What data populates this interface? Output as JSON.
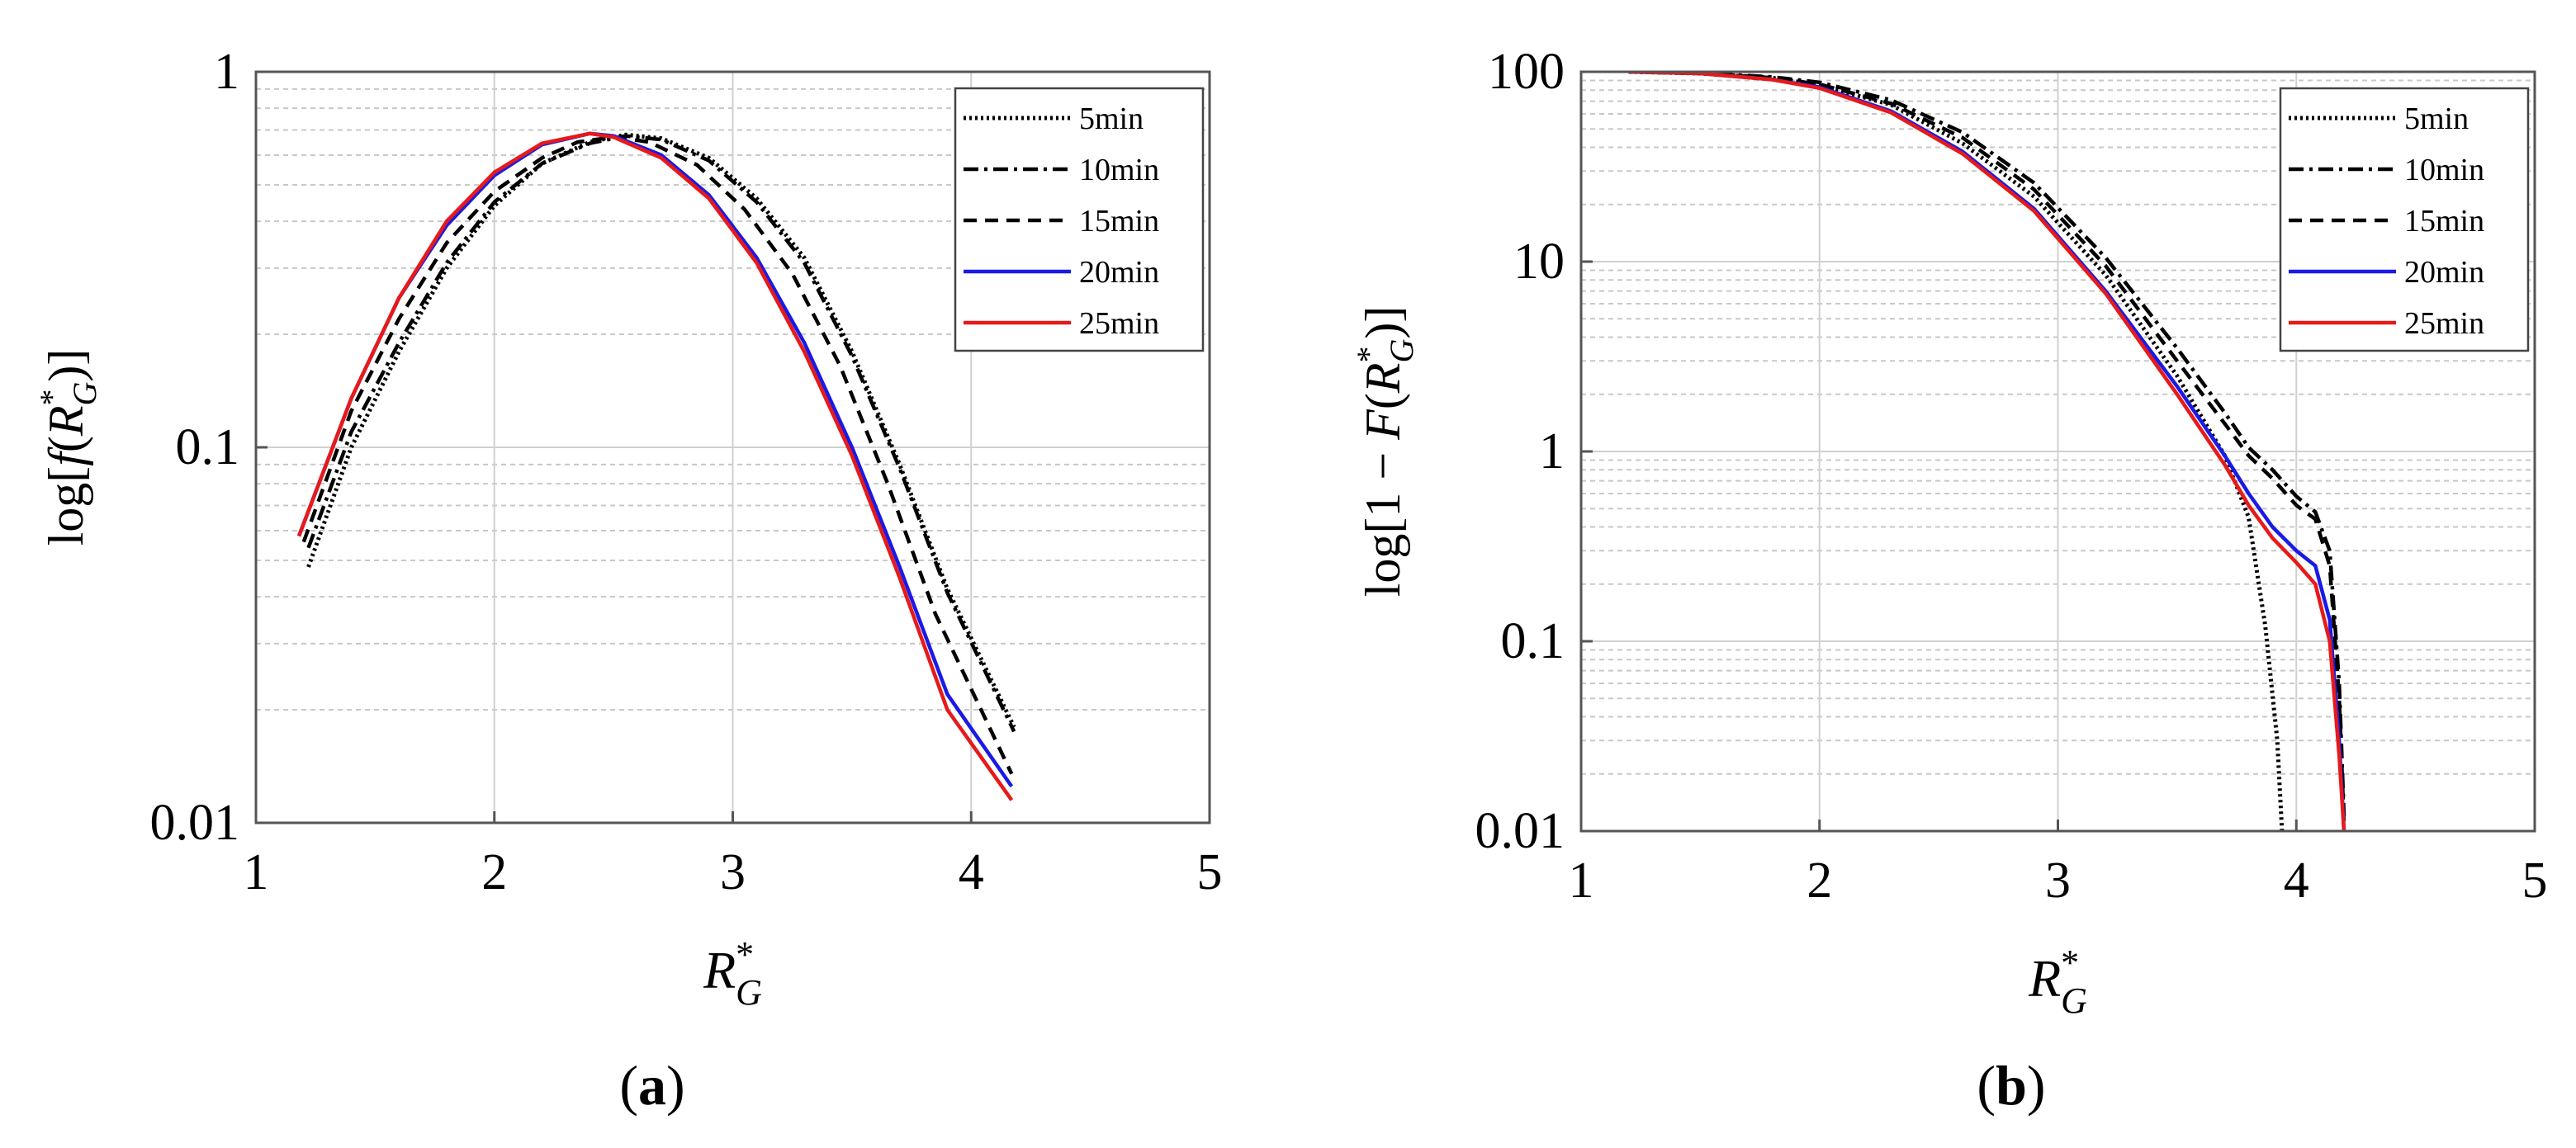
{
  "chart_data": [
    {
      "id": "a",
      "type": "line",
      "caption": "(a)",
      "yscale": "log",
      "xlim": [
        1,
        5
      ],
      "ylim": [
        0.01,
        1
      ],
      "xticks": [
        1,
        2,
        3,
        4,
        5
      ],
      "xtick_labels": [
        "1",
        "2",
        "3",
        "4",
        "5"
      ],
      "yticks": [
        0.01,
        0.1,
        1
      ],
      "ytick_labels": [
        "0.01",
        "0.1",
        "1"
      ],
      "ylabel": "log[f(R*G)]",
      "ylabel_parts": {
        "pre": "log[",
        "fn": "f",
        "open": "(",
        "var": "R",
        "sub": "G",
        "sup": "*",
        "close": ")]"
      },
      "xlabel_parts": {
        "var": "R",
        "sub": "G",
        "sup": "*"
      },
      "grid": true,
      "legend_position": "top-right",
      "series": [
        {
          "name": "5min",
          "style": "dotted",
          "color": "#000000",
          "x": [
            1.22,
            1.4,
            1.6,
            1.8,
            2.0,
            2.2,
            2.4,
            2.55,
            2.7,
            2.9,
            3.1,
            3.3,
            3.5,
            3.7,
            3.9,
            4.18
          ],
          "y": [
            0.048,
            0.1,
            0.18,
            0.3,
            0.44,
            0.57,
            0.65,
            0.68,
            0.665,
            0.59,
            0.46,
            0.32,
            0.18,
            0.09,
            0.042,
            0.018
          ]
        },
        {
          "name": "10min",
          "style": "dashdot",
          "color": "#000000",
          "x": [
            1.22,
            1.4,
            1.6,
            1.8,
            2.0,
            2.2,
            2.4,
            2.55,
            2.7,
            2.9,
            3.1,
            3.3,
            3.5,
            3.7,
            3.9,
            4.18
          ],
          "y": [
            0.054,
            0.11,
            0.19,
            0.31,
            0.45,
            0.57,
            0.645,
            0.675,
            0.66,
            0.58,
            0.45,
            0.31,
            0.175,
            0.088,
            0.041,
            0.0175
          ]
        },
        {
          "name": "15min",
          "style": "dashed",
          "color": "#000000",
          "x": [
            1.2,
            1.4,
            1.6,
            1.8,
            2.0,
            2.2,
            2.35,
            2.5,
            2.65,
            2.85,
            3.05,
            3.25,
            3.45,
            3.65,
            3.85,
            4.17
          ],
          "y": [
            0.056,
            0.125,
            0.22,
            0.35,
            0.48,
            0.59,
            0.65,
            0.67,
            0.65,
            0.565,
            0.43,
            0.29,
            0.165,
            0.08,
            0.036,
            0.0135
          ]
        },
        {
          "name": "20min",
          "style": "solid",
          "color": "#1a1ae6",
          "x": [
            1.18,
            1.4,
            1.6,
            1.8,
            2.0,
            2.2,
            2.4,
            2.5,
            2.7,
            2.9,
            3.1,
            3.3,
            3.5,
            3.7,
            3.9,
            4.17
          ],
          "y": [
            0.058,
            0.135,
            0.25,
            0.39,
            0.53,
            0.64,
            0.685,
            0.675,
            0.6,
            0.47,
            0.32,
            0.19,
            0.1,
            0.048,
            0.022,
            0.0125
          ]
        },
        {
          "name": "25min",
          "style": "solid",
          "color": "#e61a1a",
          "x": [
            1.18,
            1.4,
            1.6,
            1.8,
            2.0,
            2.2,
            2.4,
            2.5,
            2.7,
            2.9,
            3.1,
            3.3,
            3.5,
            3.7,
            3.9,
            4.17
          ],
          "y": [
            0.058,
            0.135,
            0.25,
            0.4,
            0.54,
            0.645,
            0.685,
            0.67,
            0.59,
            0.46,
            0.31,
            0.18,
            0.095,
            0.045,
            0.02,
            0.0115
          ]
        }
      ]
    },
    {
      "id": "b",
      "type": "line",
      "caption": "(b)",
      "yscale": "log",
      "xlim": [
        1,
        5
      ],
      "ylim": [
        0.01,
        100
      ],
      "xticks": [
        1,
        2,
        3,
        4,
        5
      ],
      "xtick_labels": [
        "1",
        "2",
        "3",
        "4",
        "5"
      ],
      "yticks": [
        0.01,
        0.1,
        1,
        10,
        100
      ],
      "ytick_labels": [
        "0.01",
        "0.1",
        "1",
        "10",
        "100"
      ],
      "ylabel": "log[1 − F(R*G)]",
      "ylabel_parts": {
        "pre": "log[1 − ",
        "fn": "F",
        "open": "(",
        "var": "R",
        "sub": "G",
        "sup": "*",
        "close": ")]"
      },
      "xlabel_parts": {
        "var": "R",
        "sub": "G",
        "sup": "*"
      },
      "grid": true,
      "legend_position": "top-right",
      "series": [
        {
          "name": "5min",
          "style": "dotted",
          "color": "#000000",
          "x": [
            1.2,
            1.5,
            1.8,
            2.0,
            2.3,
            2.6,
            2.9,
            3.2,
            3.5,
            3.7,
            3.8,
            3.87,
            3.92,
            3.94
          ],
          "y": [
            100,
            98,
            93,
            85,
            67,
            42,
            22,
            8.5,
            2.5,
            0.95,
            0.45,
            0.12,
            0.03,
            0.01
          ]
        },
        {
          "name": "10min",
          "style": "dashdot",
          "color": "#000000",
          "x": [
            1.2,
            1.5,
            1.8,
            2.0,
            2.3,
            2.6,
            2.9,
            3.2,
            3.5,
            3.7,
            3.8,
            3.9,
            4.0,
            4.08,
            4.14,
            4.18,
            4.2
          ],
          "y": [
            100,
            98.5,
            94,
            88,
            71,
            48,
            26,
            10.5,
            3.5,
            1.6,
            1.05,
            0.8,
            0.58,
            0.48,
            0.3,
            0.06,
            0.012
          ]
        },
        {
          "name": "15min",
          "style": "dashed",
          "color": "#000000",
          "x": [
            1.2,
            1.5,
            1.8,
            2.0,
            2.3,
            2.6,
            2.9,
            3.2,
            3.5,
            3.7,
            3.8,
            3.9,
            4.0,
            4.08,
            4.14,
            4.18,
            4.2
          ],
          "y": [
            100,
            98,
            93,
            86,
            68,
            45,
            24,
            9.5,
            3.0,
            1.4,
            0.95,
            0.72,
            0.52,
            0.44,
            0.25,
            0.05,
            0.011
          ]
        },
        {
          "name": "20min",
          "style": "solid",
          "color": "#1a1ae6",
          "x": [
            1.2,
            1.5,
            1.8,
            2.0,
            2.3,
            2.6,
            2.9,
            3.2,
            3.5,
            3.7,
            3.8,
            3.9,
            4.0,
            4.08,
            4.14,
            4.18,
            4.2
          ],
          "y": [
            100,
            98,
            91,
            83,
            62,
            38,
            19,
            7.0,
            2.2,
            0.95,
            0.6,
            0.4,
            0.3,
            0.25,
            0.13,
            0.03,
            0.01
          ]
        },
        {
          "name": "25min",
          "style": "solid",
          "color": "#e61a1a",
          "x": [
            1.2,
            1.5,
            1.8,
            2.0,
            2.3,
            2.6,
            2.9,
            3.2,
            3.5,
            3.7,
            3.8,
            3.9,
            4.0,
            4.08,
            4.14,
            4.18,
            4.2
          ],
          "y": [
            100,
            98,
            91,
            82,
            61,
            37,
            18.5,
            6.8,
            2.0,
            0.85,
            0.52,
            0.35,
            0.26,
            0.2,
            0.1,
            0.025,
            0.01
          ]
        }
      ]
    }
  ]
}
